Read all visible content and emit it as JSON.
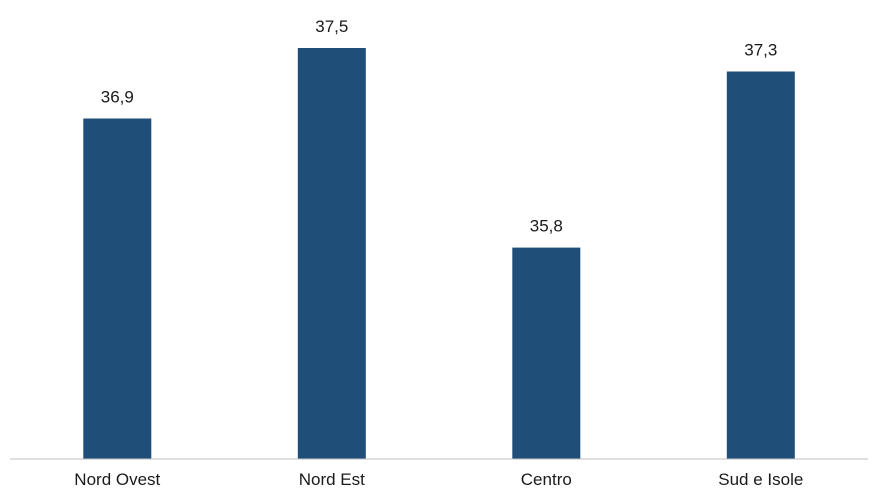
{
  "chart_data": {
    "type": "bar",
    "title": "",
    "xlabel": "",
    "ylabel": "",
    "categories": [
      "Nord Ovest",
      "Nord Est",
      "Centro",
      "Sud e Isole"
    ],
    "values": [
      36.9,
      37.5,
      35.8,
      37.3
    ],
    "value_labels": [
      "36,9",
      "37,5",
      "35,8",
      "37,3"
    ],
    "ylim": [
      34.0,
      37.5
    ],
    "grid": false,
    "legend": "none",
    "colors": {
      "bar": "#1f4e79",
      "axis": "#bfbfbf",
      "text": "#1a1a1a"
    }
  }
}
